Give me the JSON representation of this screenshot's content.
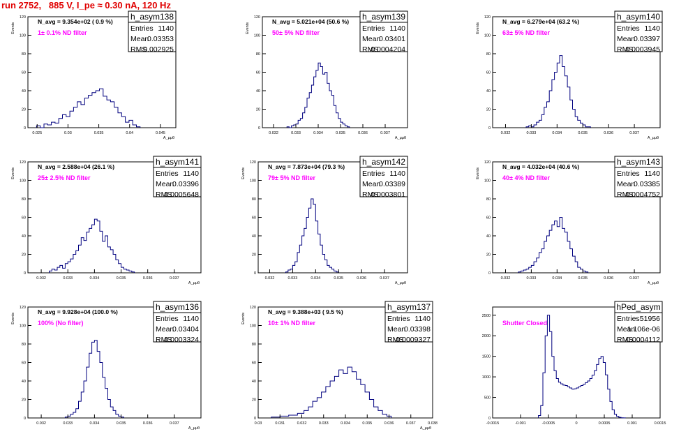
{
  "page": {
    "title": "run 2752,   885 V, I_pe ≈ 0.30 nA, 120 Hz"
  },
  "colors": {
    "histogram": "#00007f",
    "annotation": "#ff00ff",
    "title": "#e00000",
    "frame": "#000000"
  },
  "stat_labels": {
    "entries": "Entries",
    "mean": "Mean",
    "rms": "RMS"
  },
  "chart_data": [
    {
      "type": "histogram",
      "name": "h_asym138",
      "stats": {
        "entries": "1140",
        "mean": "0.03353",
        "rms": "0.002925"
      },
      "navg": "N_avg = 9.354e+02 ( 0.9 %)",
      "filter_label": "1± 0.1% ND filter",
      "ylabel": "Events",
      "xlabel": "A_μμθ",
      "xlim": [
        0.0235,
        0.0475
      ],
      "ylim": [
        0,
        120
      ],
      "xticks": [
        0.025,
        0.03,
        0.035,
        0.04,
        0.045
      ],
      "xticklabels": [
        "0.025",
        "0.03",
        "0.035",
        "0.04",
        "0.045"
      ],
      "yticks": [
        0,
        20,
        40,
        60,
        80,
        100,
        120
      ],
      "yticklabels": [
        "0",
        "20",
        "40",
        "60",
        "80",
        "100",
        "120"
      ],
      "centers": [
        0.0252,
        0.0258,
        0.0264,
        0.027,
        0.0276,
        0.0282,
        0.0288,
        0.0294,
        0.03,
        0.0306,
        0.0312,
        0.0318,
        0.0324,
        0.033,
        0.0336,
        0.0342,
        0.0348,
        0.0354,
        0.036,
        0.0366,
        0.0372,
        0.0378,
        0.0384,
        0.039,
        0.0396,
        0.0402,
        0.0408,
        0.0414
      ],
      "counts": [
        2,
        0,
        4,
        3,
        6,
        5,
        10,
        14,
        12,
        18,
        22,
        28,
        25,
        32,
        35,
        38,
        40,
        42,
        34,
        30,
        28,
        22,
        16,
        12,
        6,
        8,
        3,
        1
      ]
    },
    {
      "type": "histogram",
      "name": "h_asym139",
      "stats": {
        "entries": "1140",
        "mean": "0.03401",
        "rms": "0.0004204"
      },
      "navg": "N_avg = 5.021e+04 (50.6 %)",
      "filter_label": "50± 5% ND filter",
      "ylabel": "Events",
      "xlabel": "A_μμθ",
      "xlim": [
        0.0315,
        0.038
      ],
      "ylim": [
        0,
        120
      ],
      "xticks": [
        0.032,
        0.033,
        0.034,
        0.035,
        0.036,
        0.037
      ],
      "xticklabels": [
        "0.032",
        "0.033",
        "0.034",
        "0.035",
        "0.036",
        "0.037"
      ],
      "yticks": [
        0,
        20,
        40,
        60,
        80,
        100,
        120
      ],
      "yticklabels": [
        "0",
        "20",
        "40",
        "60",
        "80",
        "100",
        "120"
      ],
      "centers": [
        0.03265,
        0.03275,
        0.03285,
        0.03295,
        0.03305,
        0.03315,
        0.03325,
        0.03335,
        0.03345,
        0.03355,
        0.03365,
        0.03375,
        0.03385,
        0.03395,
        0.03405,
        0.03415,
        0.03425,
        0.03435,
        0.03445,
        0.03455,
        0.03465,
        0.03475,
        0.03485,
        0.03495,
        0.03505,
        0.03515,
        0.03525,
        0.03535
      ],
      "counts": [
        1,
        0,
        2,
        3,
        4,
        8,
        10,
        16,
        22,
        32,
        38,
        46,
        55,
        62,
        70,
        66,
        58,
        60,
        48,
        40,
        35,
        24,
        16,
        10,
        6,
        4,
        2,
        1
      ]
    },
    {
      "type": "histogram",
      "name": "h_asym140",
      "stats": {
        "entries": "1140",
        "mean": "0.03397",
        "rms": "0.0003945"
      },
      "navg": "N_avg = 6.279e+04 (63.2 %)",
      "filter_label": "63± 5% ND filter",
      "ylabel": "Events",
      "xlabel": "A_μμθ",
      "xlim": [
        0.0315,
        0.038
      ],
      "ylim": [
        0,
        120
      ],
      "xticks": [
        0.032,
        0.033,
        0.034,
        0.035,
        0.036,
        0.037
      ],
      "xticklabels": [
        "0.032",
        "0.033",
        "0.034",
        "0.035",
        "0.036",
        "0.037"
      ],
      "yticks": [
        0,
        20,
        40,
        60,
        80,
        100,
        120
      ],
      "yticklabels": [
        "0",
        "20",
        "40",
        "60",
        "80",
        "100",
        "120"
      ],
      "centers": [
        0.03285,
        0.03295,
        0.03305,
        0.03315,
        0.03325,
        0.03335,
        0.03345,
        0.03355,
        0.03365,
        0.03375,
        0.03385,
        0.03395,
        0.03405,
        0.03415,
        0.03425,
        0.03435,
        0.03445,
        0.03455,
        0.03465,
        0.03475,
        0.03485,
        0.03495,
        0.03505,
        0.03515,
        0.03525
      ],
      "counts": [
        1,
        2,
        1,
        3,
        6,
        8,
        14,
        22,
        28,
        40,
        52,
        60,
        70,
        78,
        66,
        56,
        44,
        30,
        20,
        12,
        8,
        5,
        3,
        1,
        1
      ]
    },
    {
      "type": "histogram",
      "name": "h_asym141",
      "stats": {
        "entries": "1140",
        "mean": "0.03396",
        "rms": "0.0005648"
      },
      "navg": "N_avg = 2.588e+04 (26.1 %)",
      "filter_label": "25± 2.5% ND filter",
      "ylabel": "Events",
      "xlabel": "A_μμθ",
      "xlim": [
        0.0315,
        0.038
      ],
      "ylim": [
        0,
        120
      ],
      "xticks": [
        0.032,
        0.033,
        0.034,
        0.035,
        0.036,
        0.037
      ],
      "xticklabels": [
        "0.032",
        "0.033",
        "0.034",
        "0.035",
        "0.036",
        "0.037"
      ],
      "yticks": [
        0,
        20,
        40,
        60,
        80,
        100,
        120
      ],
      "yticklabels": [
        "0",
        "20",
        "40",
        "60",
        "80",
        "100",
        "120"
      ],
      "centers": [
        0.03235,
        0.03245,
        0.03255,
        0.03265,
        0.03275,
        0.03285,
        0.03295,
        0.03305,
        0.03315,
        0.03325,
        0.03335,
        0.03345,
        0.03355,
        0.03365,
        0.03375,
        0.03385,
        0.03395,
        0.03405,
        0.03415,
        0.03425,
        0.03435,
        0.03445,
        0.03455,
        0.03465,
        0.03475,
        0.03485,
        0.03495,
        0.03505,
        0.03515,
        0.03525,
        0.03535,
        0.03545
      ],
      "counts": [
        2,
        4,
        3,
        6,
        8,
        5,
        10,
        12,
        15,
        20,
        24,
        30,
        38,
        35,
        44,
        48,
        52,
        58,
        56,
        45,
        34,
        40,
        28,
        25,
        20,
        14,
        10,
        6,
        4,
        3,
        2,
        1
      ]
    },
    {
      "type": "histogram",
      "name": "h_asym142",
      "stats": {
        "entries": "1140",
        "mean": "0.03389",
        "rms": "0.0003801"
      },
      "navg": "N_avg = 7.873e+04 (79.3 %)",
      "filter_label": "79± 5% ND filter",
      "ylabel": "Events",
      "xlabel": "A_μμθ",
      "xlim": [
        0.0315,
        0.038
      ],
      "ylim": [
        0,
        120
      ],
      "xticks": [
        0.032,
        0.033,
        0.034,
        0.035,
        0.036,
        0.037
      ],
      "xticklabels": [
        "0.032",
        "0.033",
        "0.034",
        "0.035",
        "0.036",
        "0.037"
      ],
      "yticks": [
        0,
        20,
        40,
        60,
        80,
        100,
        120
      ],
      "yticklabels": [
        "0",
        "20",
        "40",
        "60",
        "80",
        "100",
        "120"
      ],
      "centers": [
        0.03275,
        0.03285,
        0.03295,
        0.03305,
        0.03315,
        0.03325,
        0.03335,
        0.03345,
        0.03355,
        0.03365,
        0.03375,
        0.03385,
        0.03395,
        0.03405,
        0.03415,
        0.03425,
        0.03435,
        0.03445,
        0.03455,
        0.03465,
        0.03475,
        0.03485,
        0.03495
      ],
      "counts": [
        1,
        3,
        4,
        8,
        12,
        22,
        30,
        40,
        48,
        60,
        70,
        80,
        74,
        56,
        42,
        30,
        20,
        14,
        8,
        6,
        4,
        2,
        1
      ]
    },
    {
      "type": "histogram",
      "name": "h_asym143",
      "stats": {
        "entries": "1140",
        "mean": "0.03385",
        "rms": "0.0004752"
      },
      "navg": "N_avg = 4.032e+04 (40.6 %)",
      "filter_label": "40± 4% ND filter",
      "ylabel": "Events",
      "xlabel": "A_μμθ",
      "xlim": [
        0.0315,
        0.038
      ],
      "ylim": [
        0,
        120
      ],
      "xticks": [
        0.032,
        0.033,
        0.034,
        0.035,
        0.036,
        0.037
      ],
      "xticklabels": [
        "0.032",
        "0.033",
        "0.034",
        "0.035",
        "0.036",
        "0.037"
      ],
      "yticks": [
        0,
        20,
        40,
        60,
        80,
        100,
        120
      ],
      "yticklabels": [
        "0",
        "20",
        "40",
        "60",
        "80",
        "100",
        "120"
      ],
      "centers": [
        0.03255,
        0.03265,
        0.03275,
        0.03285,
        0.03295,
        0.03305,
        0.03315,
        0.03325,
        0.03335,
        0.03345,
        0.03355,
        0.03365,
        0.03375,
        0.03385,
        0.03395,
        0.03405,
        0.03415,
        0.03425,
        0.03435,
        0.03445,
        0.03455,
        0.03465,
        0.03475,
        0.03485,
        0.03495,
        0.03505,
        0.03515
      ],
      "counts": [
        1,
        2,
        3,
        4,
        6,
        8,
        12,
        16,
        22,
        26,
        34,
        40,
        46,
        52,
        56,
        50,
        60,
        48,
        44,
        34,
        26,
        18,
        12,
        6,
        4,
        2,
        1
      ]
    },
    {
      "type": "histogram",
      "name": "h_asym136",
      "stats": {
        "entries": "1140",
        "mean": "0.03404",
        "rms": "0.0003324"
      },
      "navg": "N_avg = 9.928e+04 (100.0 %)",
      "filter_label": "100% (No filter)",
      "ylabel": "Events",
      "xlabel": "A_μμθ",
      "xlim": [
        0.0315,
        0.038
      ],
      "ylim": [
        0,
        120
      ],
      "xticks": [
        0.032,
        0.033,
        0.034,
        0.035,
        0.036,
        0.037
      ],
      "xticklabels": [
        "0.032",
        "0.033",
        "0.034",
        "0.035",
        "0.036",
        "0.037"
      ],
      "yticks": [
        0,
        20,
        40,
        60,
        80,
        100,
        120
      ],
      "yticklabels": [
        "0",
        "20",
        "40",
        "60",
        "80",
        "100",
        "120"
      ],
      "centers": [
        0.03295,
        0.03305,
        0.03315,
        0.03325,
        0.03335,
        0.03345,
        0.03355,
        0.03365,
        0.03375,
        0.03385,
        0.03395,
        0.03405,
        0.03415,
        0.03425,
        0.03435,
        0.03445,
        0.03455,
        0.03465,
        0.03475,
        0.03485,
        0.03495,
        0.03505
      ],
      "counts": [
        1,
        2,
        4,
        6,
        10,
        18,
        28,
        40,
        55,
        70,
        82,
        84,
        72,
        60,
        44,
        32,
        20,
        12,
        8,
        4,
        2,
        1
      ]
    },
    {
      "type": "histogram",
      "name": "h_asym137",
      "stats": {
        "entries": "1140",
        "mean": "0.03398",
        "rms": "0.0009327"
      },
      "navg": "N_avg = 9.388e+03 ( 9.5 %)",
      "filter_label": "10± 1% ND filter",
      "ylabel": "Events",
      "xlabel": "A_μμθ",
      "xlim": [
        0.03,
        0.038
      ],
      "ylim": [
        0,
        120
      ],
      "xticks": [
        0.03,
        0.031,
        0.032,
        0.033,
        0.034,
        0.035,
        0.036,
        0.037,
        0.038
      ],
      "xticklabels": [
        "0.03",
        "0.031",
        "0.032",
        "0.033",
        "0.034",
        "0.035",
        "0.036",
        "0.037",
        "0.038"
      ],
      "yticks": [
        0,
        20,
        40,
        60,
        80,
        100,
        120
      ],
      "yticklabels": [
        "0",
        "20",
        "40",
        "60",
        "80",
        "100",
        "120"
      ],
      "centers": [
        0.0308,
        0.0312,
        0.0316,
        0.032,
        0.0322,
        0.0324,
        0.0326,
        0.0328,
        0.033,
        0.0332,
        0.0334,
        0.0336,
        0.0338,
        0.034,
        0.0342,
        0.0344,
        0.0346,
        0.0348,
        0.035,
        0.0352,
        0.0354,
        0.0356,
        0.0358,
        0.036
      ],
      "counts": [
        1,
        2,
        3,
        5,
        8,
        12,
        18,
        22,
        28,
        34,
        40,
        45,
        52,
        48,
        55,
        50,
        42,
        36,
        28,
        20,
        12,
        8,
        4,
        2
      ]
    },
    {
      "type": "histogram",
      "name": "hPed_asym",
      "stats": {
        "entries": "51956",
        "mean": "1.106e-06",
        "rms": "0.0004112"
      },
      "navg": "",
      "filter_label": "Shutter Closed",
      "ylabel": "",
      "xlabel": "",
      "xlim": [
        -0.0015,
        0.0015
      ],
      "ylim": [
        0,
        2700
      ],
      "xticks": [
        -0.0015,
        -0.001,
        -0.0005,
        0,
        0.0005,
        0.001,
        0.0015
      ],
      "xticklabels": [
        "-0.0015",
        "-0.001",
        "-0.0005",
        "0",
        "0.0005",
        "0.001",
        "0.0015"
      ],
      "yticks": [
        0,
        500,
        1000,
        1500,
        2000,
        2500
      ],
      "yticklabels": [
        "0",
        "500",
        "1000",
        "1500",
        "2000",
        "2500"
      ],
      "centers": [
        -0.00066,
        -0.00062,
        -0.00058,
        -0.00054,
        -0.0005,
        -0.00046,
        -0.00042,
        -0.00038,
        -0.00034,
        -0.0003,
        -0.00026,
        -0.00022,
        -0.00018,
        -0.00014,
        -0.0001,
        -6e-05,
        -2e-05,
        2e-05,
        6e-05,
        0.0001,
        0.00014,
        0.00018,
        0.00022,
        0.00026,
        0.0003,
        0.00034,
        0.00038,
        0.00042,
        0.00046,
        0.0005,
        0.00054,
        0.00058,
        0.00062,
        0.00066,
        0.0007,
        0.00074,
        0.00078,
        0.00082,
        0.00086
      ],
      "counts": [
        60,
        300,
        1100,
        2000,
        2500,
        2100,
        1500,
        1150,
        960,
        870,
        830,
        800,
        790,
        760,
        730,
        700,
        710,
        730,
        760,
        790,
        820,
        860,
        900,
        960,
        1040,
        1150,
        1300,
        1450,
        1500,
        1350,
        1050,
        700,
        400,
        200,
        90,
        40,
        15,
        5,
        2
      ]
    }
  ]
}
